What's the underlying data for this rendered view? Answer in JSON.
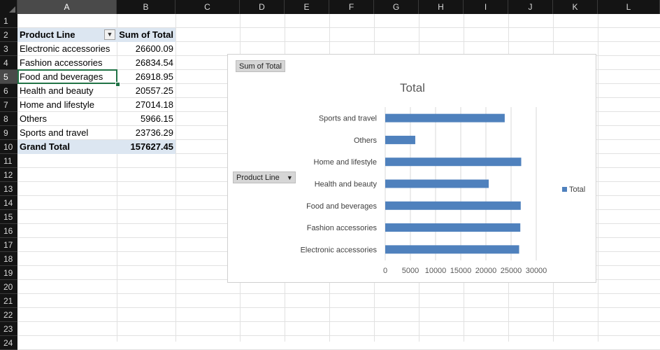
{
  "columns": [
    "A",
    "B",
    "C",
    "D",
    "E",
    "F",
    "G",
    "H",
    "I",
    "J",
    "K",
    "L"
  ],
  "rows": [
    "1",
    "2",
    "3",
    "4",
    "5",
    "6",
    "7",
    "8",
    "9",
    "10",
    "11",
    "12",
    "13",
    "14",
    "15",
    "16",
    "17",
    "18",
    "19",
    "20",
    "21",
    "22",
    "23",
    "24"
  ],
  "pivot": {
    "header_label": "Product Line",
    "header_value": "Sum of Total",
    "rows": [
      {
        "label": "Electronic accessories",
        "value": "26600.09"
      },
      {
        "label": "Fashion accessories",
        "value": "26834.54"
      },
      {
        "label": "Food and beverages",
        "value": "26918.95"
      },
      {
        "label": "Health and beauty",
        "value": "20557.25"
      },
      {
        "label": "Home and lifestyle",
        "value": "27014.18"
      },
      {
        "label": "Others",
        "value": "5966.15"
      },
      {
        "label": "Sports and travel",
        "value": "23736.29"
      }
    ],
    "grand_total_label": "Grand Total",
    "grand_total_value": "157627.45"
  },
  "chart": {
    "value_field_button": "Sum of Total",
    "axis_field_button": "Product Line"
  },
  "colors": {
    "bar": "#4f81bd",
    "selection": "#217346",
    "pivot_band": "#dce6f1"
  },
  "chart_data": {
    "type": "bar",
    "orientation": "horizontal",
    "title": "Total",
    "categories": [
      "Sports and travel",
      "Others",
      "Home and lifestyle",
      "Health and beauty",
      "Food and beverages",
      "Fashion accessories",
      "Electronic accessories"
    ],
    "series": [
      {
        "name": "Total",
        "values": [
          23736.29,
          5966.15,
          27014.18,
          20557.25,
          26918.95,
          26834.54,
          26600.09
        ]
      }
    ],
    "xticks": [
      "0",
      "5000",
      "10000",
      "15000",
      "20000",
      "25000",
      "30000"
    ],
    "xlim": [
      0,
      30000
    ],
    "grid": true,
    "legend": "right"
  }
}
